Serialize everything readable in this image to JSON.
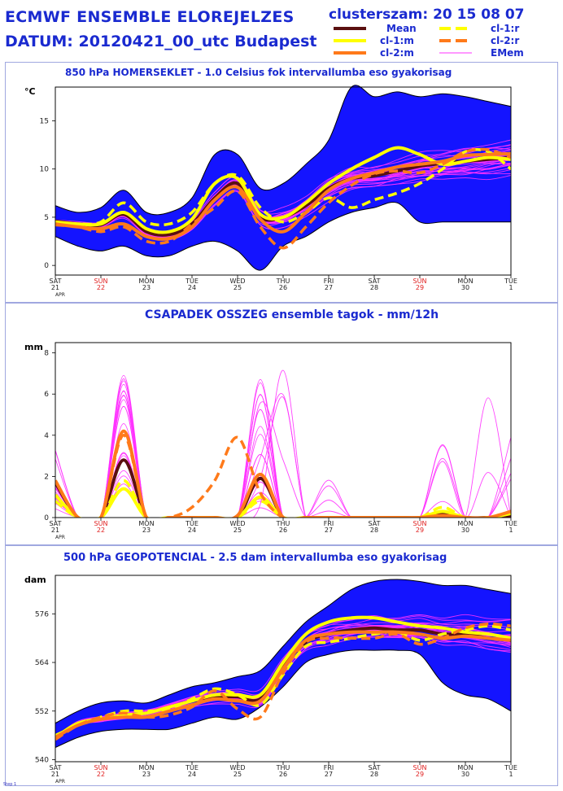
{
  "header": {
    "title_line1": "ECMWF ENSEMBLE ELOREJELZES",
    "title_line2": "DATUM: 20120421_00_utc  Budapest",
    "clusters_label": "clusterszam:",
    "clusters_value": "20 15 08 07"
  },
  "legend": [
    {
      "label": "Mean",
      "color": "#5a1010",
      "style": "solid"
    },
    {
      "label": "cl-1:r",
      "color": "#ffff00",
      "style": "dashed"
    },
    {
      "label": "cl-1:m",
      "color": "#ffff00",
      "style": "solid"
    },
    {
      "label": "cl-2:r",
      "color": "#ff7a1a",
      "style": "dashed"
    },
    {
      "label": "cl-2:m",
      "color": "#ff7a1a",
      "style": "solid"
    },
    {
      "label": "EMem",
      "color": "#ff30ff",
      "style": "thin"
    }
  ],
  "colors": {
    "envelope": "#1414ff",
    "member": "#ff30ff",
    "mean": "#5a1010",
    "cl1": "#ffff00",
    "cl2": "#ff7a1a"
  },
  "footer": "Step 1",
  "chart_data": [
    {
      "type": "line",
      "title": "850 hPa HOMERSEKLET - 1.0 Celsius fok intervallumba eso gyakorisag",
      "ylabel": "°C",
      "ylim": [
        -1,
        18.5
      ],
      "yticks": [
        0,
        5,
        10,
        15
      ],
      "x": [
        0,
        1,
        2,
        3,
        4,
        5,
        6,
        7,
        8,
        9,
        10,
        11,
        12,
        13,
        14,
        15,
        16,
        17,
        18,
        19,
        20
      ],
      "x_day_labels": [
        "SAT",
        "SUN",
        "MON",
        "TUE",
        "WED",
        "THU",
        "FRI",
        "SAT",
        "SUN",
        "MON",
        "TUE"
      ],
      "x_date_labels": [
        "21",
        "22",
        "23",
        "24",
        "25",
        "26",
        "27",
        "28",
        "29",
        "30",
        "1"
      ],
      "x_red_days": [
        1,
        8
      ],
      "x_sublabel": "APR",
      "envelope_upper": [
        6.2,
        5.5,
        6,
        7.8,
        5.5,
        5.5,
        7,
        11.5,
        11.5,
        8,
        8.5,
        10.5,
        13,
        18.5,
        17.5,
        18,
        17.5,
        17.8,
        17.5,
        17,
        16.5
      ],
      "envelope_lower": [
        3,
        2,
        1.5,
        2,
        1,
        1,
        2,
        2.5,
        1.5,
        -0.5,
        2,
        3,
        4.5,
        5.5,
        6,
        6.5,
        4.5,
        4.5,
        4.5,
        4.5,
        4.5
      ],
      "series": [
        {
          "name": "Mean",
          "values": [
            4.6,
            4.3,
            4.2,
            5.3,
            3.5,
            3.2,
            4.3,
            7,
            8.5,
            5,
            5,
            6.2,
            8,
            9,
            9.3,
            9.8,
            10.3,
            10.6,
            10.8,
            11,
            11.2
          ]
        },
        {
          "name": "cl-1:r",
          "values": [
            4.4,
            4.3,
            4.5,
            6.5,
            4.5,
            4.3,
            5.5,
            8.5,
            9.3,
            6,
            4.5,
            5.5,
            7,
            6,
            6.8,
            7.5,
            8.5,
            10,
            11.8,
            11.8,
            10
          ]
        },
        {
          "name": "cl-1:m",
          "values": [
            4.5,
            4.3,
            4.3,
            5.5,
            3.8,
            3.5,
            4.8,
            8.5,
            9,
            5.3,
            5,
            6.5,
            8.5,
            10,
            11.2,
            12.2,
            11.5,
            10.5,
            10.8,
            11.2,
            11
          ]
        },
        {
          "name": "cl-2:r",
          "values": [
            4.2,
            4,
            3.5,
            4,
            2.5,
            2.5,
            4.3,
            6,
            7.7,
            4,
            1.8,
            4,
            6.5,
            8.3,
            9.5,
            9.8,
            9.6,
            10.5,
            11.8,
            12,
            11.2
          ]
        },
        {
          "name": "cl-2:m",
          "values": [
            4.3,
            4,
            3.8,
            4.3,
            3,
            2.8,
            4,
            6.8,
            8.1,
            4.8,
            3.5,
            5.5,
            7.8,
            9,
            9.6,
            10.2,
            10.5,
            10.8,
            11.4,
            11.5,
            11.6
          ]
        }
      ]
    },
    {
      "type": "line",
      "title": "CSAPADEK OSSZEG ensemble tagok - mm/12h",
      "ylabel": "mm",
      "ylim": [
        0,
        8.5
      ],
      "yticks": [
        0,
        2,
        4,
        6,
        8
      ],
      "x": [
        0,
        1,
        2,
        3,
        4,
        5,
        6,
        7,
        8,
        9,
        10,
        11,
        12,
        13,
        14,
        15,
        16,
        17,
        18,
        19,
        20
      ],
      "x_day_labels": [
        "SAT",
        "SUN",
        "MON",
        "TUE",
        "WED",
        "THU",
        "FRI",
        "SAT",
        "SUN",
        "MON",
        "TUE"
      ],
      "x_date_labels": [
        "21",
        "22",
        "23",
        "24",
        "25",
        "26",
        "27",
        "28",
        "29",
        "30",
        "1"
      ],
      "x_red_days": [
        1,
        8
      ],
      "x_sublabel": "APR",
      "member_peaks": [
        3.8,
        7,
        8,
        6.8,
        5.8,
        4.8,
        6.8,
        4.9
      ],
      "series": [
        {
          "name": "Mean",
          "values": [
            1.7,
            0,
            0,
            2.8,
            0,
            0,
            0,
            0,
            0,
            1.9,
            0,
            0,
            0,
            0,
            0,
            0,
            0,
            0.2,
            0,
            0,
            0.1
          ]
        },
        {
          "name": "cl-1:r",
          "values": [
            0.8,
            0,
            0,
            1.8,
            0,
            0,
            0,
            0,
            0,
            0.8,
            0,
            0,
            0,
            0,
            0,
            0,
            0,
            0.5,
            0,
            0,
            0.2
          ]
        },
        {
          "name": "cl-1:m",
          "values": [
            1.1,
            0,
            0,
            1.4,
            0,
            0,
            0,
            0,
            0,
            1,
            0,
            0,
            0,
            0,
            0,
            0,
            0,
            0.3,
            0,
            0,
            0.2
          ]
        },
        {
          "name": "cl-2:r",
          "values": [
            1.8,
            0,
            0,
            4,
            0,
            0,
            0.5,
            1.8,
            3.9,
            1.2,
            0,
            0,
            0,
            0,
            0,
            0,
            0,
            0.1,
            0,
            0,
            0.3
          ]
        },
        {
          "name": "cl-2:m",
          "values": [
            1.8,
            0,
            0,
            4.2,
            0,
            0,
            0,
            0,
            0.1,
            2.1,
            0,
            0,
            0,
            0,
            0,
            0,
            0,
            0.1,
            0,
            0,
            0.3
          ]
        }
      ]
    },
    {
      "type": "line",
      "title": "500 hPa GEOPOTENCIAL - 2.5 dam intervallumba eso gyakorisag",
      "ylabel": "dam",
      "ylim": [
        539.5,
        585.5
      ],
      "yticks": [
        540,
        552,
        564,
        576
      ],
      "x": [
        0,
        1,
        2,
        3,
        4,
        5,
        6,
        7,
        8,
        9,
        10,
        11,
        12,
        13,
        14,
        15,
        16,
        17,
        18,
        19,
        20
      ],
      "x_day_labels": [
        "SAT",
        "SUN",
        "MON",
        "TUE",
        "WED",
        "THU",
        "FRI",
        "SAT",
        "SUN",
        "MON",
        "TUE"
      ],
      "x_date_labels": [
        "21",
        "22",
        "23",
        "24",
        "25",
        "26",
        "27",
        "28",
        "29",
        "30",
        "1"
      ],
      "x_red_days": [
        1,
        8
      ],
      "x_sublabel": "APR",
      "envelope_upper": [
        549,
        552,
        554,
        554.5,
        554,
        556,
        558,
        559,
        560.5,
        562,
        568,
        574,
        578,
        582,
        584,
        584.5,
        584,
        583,
        583,
        582,
        581
      ],
      "envelope_lower": [
        543,
        545.5,
        547,
        547.5,
        547.5,
        547.5,
        549,
        550.5,
        550,
        553,
        558,
        564,
        566,
        567,
        567,
        567,
        566,
        559,
        556,
        555,
        552
      ],
      "series": [
        {
          "name": "Mean",
          "values": [
            545.5,
            549,
            550,
            551,
            551.5,
            553,
            554.5,
            555.5,
            555.5,
            555,
            563,
            569,
            571,
            572,
            572.5,
            572,
            572,
            571,
            571,
            570,
            569.5
          ]
        },
        {
          "name": "cl-1:r",
          "values": [
            546,
            548.5,
            550.5,
            552,
            552,
            552.5,
            555,
            557.5,
            556,
            553.5,
            561,
            568,
            569,
            570,
            571,
            571.5,
            569.5,
            571,
            572,
            573,
            572
          ]
        },
        {
          "name": "cl-1:m",
          "values": [
            545.5,
            549,
            550,
            551,
            551.5,
            553,
            554.5,
            556,
            556,
            556,
            564,
            571,
            574,
            575,
            575,
            574,
            573,
            572.5,
            571.5,
            571,
            570
          ]
        },
        {
          "name": "cl-2:r",
          "values": [
            545,
            548.5,
            550.5,
            551.5,
            550.5,
            551,
            553,
            557,
            552.5,
            550.5,
            561.5,
            569,
            570,
            570,
            570,
            571,
            568.5,
            570,
            572.5,
            573.5,
            573
          ]
        },
        {
          "name": "cl-2:m",
          "values": [
            545.5,
            548.5,
            550,
            550.5,
            550.5,
            552,
            553.5,
            555,
            554.5,
            554.5,
            562.5,
            569.5,
            571,
            571.5,
            571.5,
            571.5,
            571,
            570,
            570.5,
            570,
            569.5
          ]
        }
      ]
    }
  ]
}
